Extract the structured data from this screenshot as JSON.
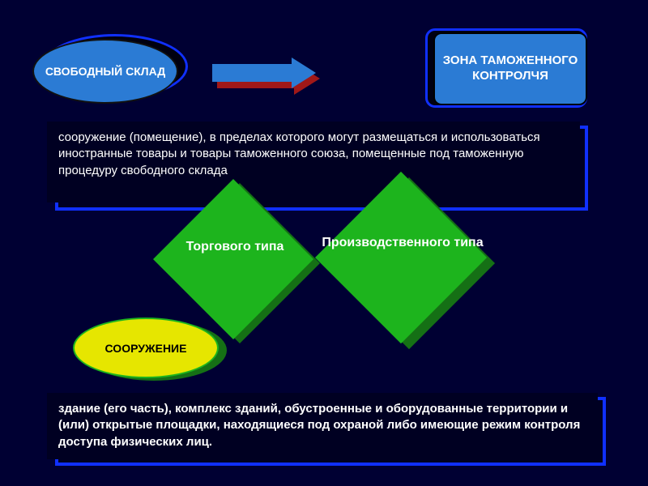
{
  "colors": {
    "background": "#000033",
    "frame_blue": "#1030ff",
    "panel_bg": "#000022",
    "shape_blue": "#2b7bd4",
    "arrow_red": "#a01818",
    "diamond_green": "#1db41d",
    "diamond_shadow": "#157015",
    "ellipse_yellow": "#e6e600",
    "text_white": "#ffffff",
    "text_black": "#000000"
  },
  "ellipse_top": {
    "label": "СВОБОДНЫЙ СКЛАД"
  },
  "roundbox": {
    "label": "ЗОНА ТАМОЖЕННОГО КОНТРОЛЧЯ"
  },
  "panel1": {
    "text": "сооружение (помещение), в пределах которого могут размещаться и использоваться иностранные товары и товары таможенного союза, помещенные под таможенную процедуру свободного склада"
  },
  "diamond1": {
    "label": "Торгового типа"
  },
  "diamond2": {
    "label": "Производственного типа"
  },
  "ellipse_yellow": {
    "label": "СООРУЖЕНИЕ"
  },
  "panel2": {
    "text": "здание (его часть), комплекс зданий, обустроенные и оборудованные территории и (или) открытые площадки, находящиеся под охраной либо имеющие режим контроля доступа физических лиц."
  },
  "fonts": {
    "title_size": 15,
    "body_size": 15,
    "diamond_size": 16
  }
}
